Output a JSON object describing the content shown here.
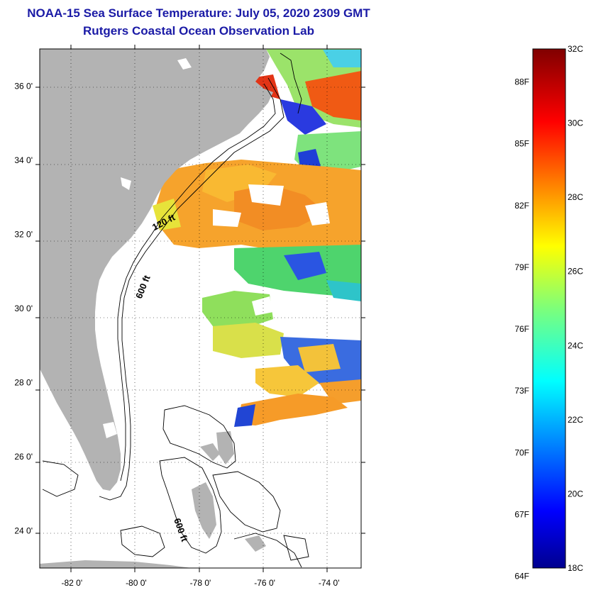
{
  "title": "NOAA-15 Sea Surface Temperature:  July 05, 2020 2309 GMT",
  "subtitle": "Rutgers Coastal Ocean Observation Lab",
  "map": {
    "lon_range": [
      -83,
      -73
    ],
    "lat_range": [
      23,
      37
    ],
    "lat_ticks": [
      {
        "value": 36,
        "label": "36 0'"
      },
      {
        "value": 34,
        "label": "34 0'"
      },
      {
        "value": 32,
        "label": "32 0'"
      },
      {
        "value": 30,
        "label": "30 0'"
      },
      {
        "value": 28,
        "label": "28 0'"
      },
      {
        "value": 26,
        "label": "26 0'"
      },
      {
        "value": 24,
        "label": "24 0'"
      }
    ],
    "lon_ticks": [
      {
        "value": -82,
        "label": "-82 0'"
      },
      {
        "value": -80,
        "label": "-80 0'"
      },
      {
        "value": -78,
        "label": "-78 0'"
      },
      {
        "value": -76,
        "label": "-76 0'"
      },
      {
        "value": -74,
        "label": "-74 0'"
      }
    ],
    "contour_labels": [
      {
        "text": "120 ft",
        "lon": -79.1,
        "lat": 32.25,
        "rotate": -28
      },
      {
        "text": "600 ft",
        "lon": -79.7,
        "lat": 30.55,
        "rotate": -68
      },
      {
        "text": "600 ft",
        "lon": -78.7,
        "lat": 24.0,
        "rotate": 70
      }
    ],
    "land_color": "#b3b3b3"
  },
  "colorbar": {
    "celsius_labels": [
      {
        "value": 32,
        "label": "32C"
      },
      {
        "value": 30,
        "label": "30C"
      },
      {
        "value": 28,
        "label": "28C"
      },
      {
        "value": 26,
        "label": "26C"
      },
      {
        "value": 24,
        "label": "24C"
      },
      {
        "value": 22,
        "label": "22C"
      },
      {
        "value": 20,
        "label": "20C"
      },
      {
        "value": 18,
        "label": "18C"
      }
    ],
    "fahrenheit_labels": [
      {
        "value": 88,
        "label": "88F"
      },
      {
        "value": 85,
        "label": "85F"
      },
      {
        "value": 82,
        "label": "82F"
      },
      {
        "value": 79,
        "label": "79F"
      },
      {
        "value": 76,
        "label": "76F"
      },
      {
        "value": 73,
        "label": "73F"
      },
      {
        "value": 70,
        "label": "70F"
      },
      {
        "value": 67,
        "label": "67F"
      },
      {
        "value": 64,
        "label": "64F"
      }
    ],
    "range_c": [
      18,
      32
    ]
  }
}
